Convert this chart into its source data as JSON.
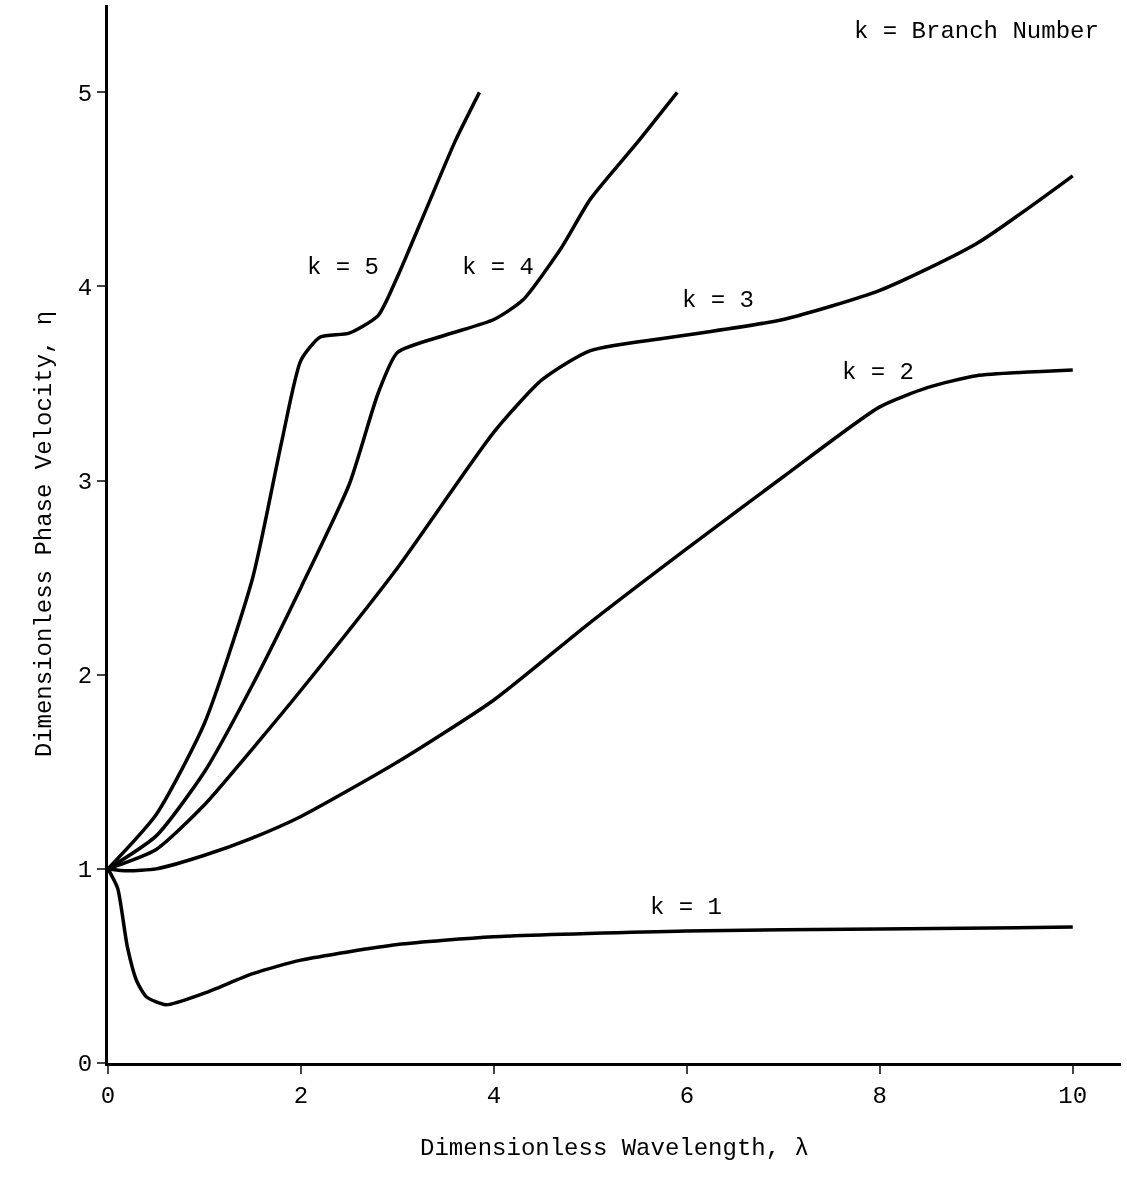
{
  "chart_data": {
    "type": "line",
    "xlabel": "Dimensionless Wavelength, λ",
    "ylabel": "Dimensionless Phase Velocity, η",
    "xlim": [
      0,
      10.5
    ],
    "ylim": [
      0,
      5.45
    ],
    "xticks": [
      0,
      2,
      4,
      6,
      8,
      10
    ],
    "yticks": [
      0,
      1,
      2,
      3,
      4,
      5
    ],
    "grid": false,
    "legend": false,
    "marker": "none",
    "line_style": "solid",
    "series": [
      {
        "name": "k = 1",
        "color": "#000000",
        "x": [
          0,
          0.1,
          0.2,
          0.3,
          0.4,
          0.6,
          1,
          1.5,
          2,
          3,
          4,
          6,
          8,
          10
        ],
        "values": [
          1,
          0.9,
          0.6,
          0.42,
          0.34,
          0.3,
          0.36,
          0.46,
          0.53,
          0.61,
          0.65,
          0.68,
          0.69,
          0.7
        ]
      },
      {
        "name": "k = 2",
        "color": "#000000",
        "x": [
          0,
          0.2,
          0.5,
          1,
          1.5,
          2,
          3,
          4,
          5,
          6,
          7,
          8,
          8.5,
          9,
          10
        ],
        "values": [
          1,
          0.99,
          1,
          1.07,
          1.16,
          1.27,
          1.55,
          1.87,
          2.27,
          2.65,
          3.02,
          3.38,
          3.48,
          3.54,
          3.57
        ]
      },
      {
        "name": "k = 3",
        "color": "#000000",
        "x": [
          0,
          0.5,
          1,
          1.5,
          2,
          3,
          4,
          4.5,
          5,
          6,
          7,
          8,
          9,
          10
        ],
        "values": [
          1,
          1.1,
          1.33,
          1.62,
          1.92,
          2.55,
          3.25,
          3.52,
          3.67,
          3.75,
          3.83,
          3.98,
          4.22,
          4.57
        ]
      },
      {
        "name": "k = 4",
        "color": "#000000",
        "x": [
          0,
          0.5,
          1,
          1.5,
          2,
          2.5,
          2.8,
          3,
          3.5,
          4,
          4.3,
          4.7,
          5,
          5.5,
          5.9
        ],
        "values": [
          1,
          1.17,
          1.5,
          1.95,
          2.45,
          2.98,
          3.45,
          3.66,
          3.75,
          3.83,
          3.93,
          4.2,
          4.45,
          4.75,
          5
        ]
      },
      {
        "name": "k = 5",
        "color": "#000000",
        "x": [
          0,
          0.5,
          1,
          1.5,
          1.8,
          2,
          2.2,
          2.5,
          2.8,
          3,
          3.3,
          3.6,
          3.85
        ],
        "values": [
          1,
          1.28,
          1.75,
          2.5,
          3.2,
          3.62,
          3.74,
          3.76,
          3.85,
          4.05,
          4.4,
          4.75,
          5
        ]
      }
    ],
    "annotations": [
      "k = Branch Number"
    ]
  }
}
